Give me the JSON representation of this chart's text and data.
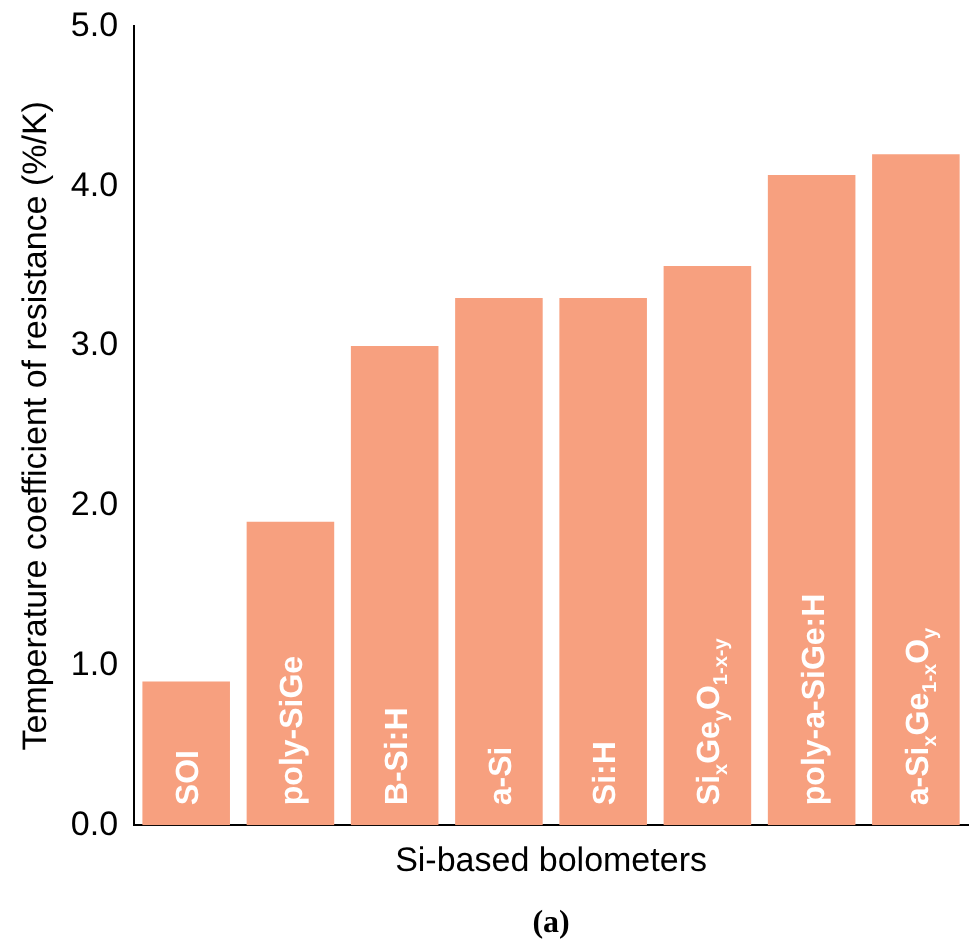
{
  "chart_data": {
    "type": "bar",
    "xlabel": "Si-based bolometers",
    "ylabel": "Temperature coefficient of resistance (%/K)",
    "categories": [
      "SOI",
      "poly-SiGe",
      "B-Si:H",
      "a-Si",
      "Si:H",
      "Si$_{x}$Ge$_{y}$O$_{1-x-y}$",
      "poly-a-SiGe:H",
      "a-Si$_{x}$Ge$_{1-x}$O$_{y}$"
    ],
    "values": [
      0.9,
      1.9,
      3.0,
      3.3,
      3.3,
      3.5,
      4.07,
      4.2
    ],
    "color": "#f7a07f",
    "ylim": [
      0,
      5
    ],
    "yticks": [
      {
        "value": 0,
        "label": "0.0"
      },
      {
        "value": 1,
        "label": "1.0"
      },
      {
        "value": 2,
        "label": "2.0"
      },
      {
        "value": 3,
        "label": "3.0"
      },
      {
        "value": 4,
        "label": "4.0"
      },
      {
        "value": 5,
        "label": "5.0"
      }
    ],
    "grid": false,
    "legend": false,
    "annotations": [
      "(a)"
    ]
  }
}
